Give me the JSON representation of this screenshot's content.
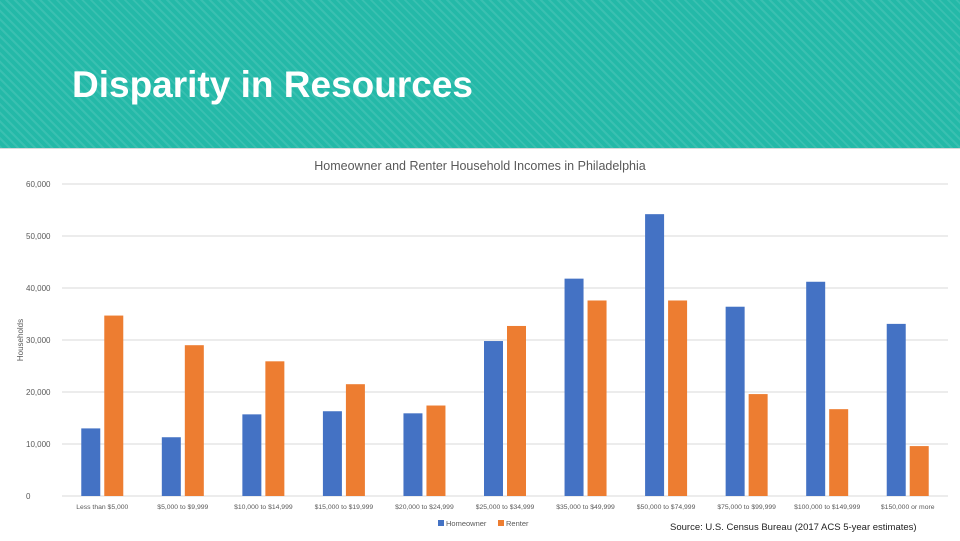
{
  "slide": {
    "title": "Disparity in Resources",
    "source": "Source: U.S. Census Bureau (2017 ACS 5-year estimates)"
  },
  "colors": {
    "banner": "#24b9a8",
    "homeowner": "#4472c4",
    "renter": "#ed7d31",
    "grid": "#d9d9d9",
    "axis_text": "#595959"
  },
  "chart_data": {
    "type": "bar",
    "title": "Homeowner and Renter Household Incomes in Philadelphia",
    "ylabel": "Households",
    "xlabel": "",
    "ylim": [
      0,
      60000
    ],
    "yticks": [
      "0",
      "10,000",
      "20,000",
      "30,000",
      "40,000",
      "50,000",
      "60,000"
    ],
    "ytick_values": [
      0,
      10000,
      20000,
      30000,
      40000,
      50000,
      60000
    ],
    "grid": true,
    "legend_position": "bottom",
    "categories": [
      "Less than $5,000",
      "$5,000 to $9,999",
      "$10,000 to $14,999",
      "$15,000 to $19,999",
      "$20,000 to $24,999",
      "$25,000 to $34,999",
      "$35,000 to $49,999",
      "$50,000 to $74,999",
      "$75,000 to $99,999",
      "$100,000 to $149,999",
      "$150,000 or more"
    ],
    "series": [
      {
        "name": "Homeowner",
        "color": "#4472c4",
        "values": [
          13000,
          11300,
          15700,
          16300,
          15900,
          29800,
          41800,
          54200,
          36400,
          41200,
          33100
        ]
      },
      {
        "name": "Renter",
        "color": "#ed7d31",
        "values": [
          34700,
          29000,
          25900,
          21500,
          17400,
          32700,
          37600,
          37600,
          19600,
          16700,
          9600
        ]
      }
    ]
  }
}
